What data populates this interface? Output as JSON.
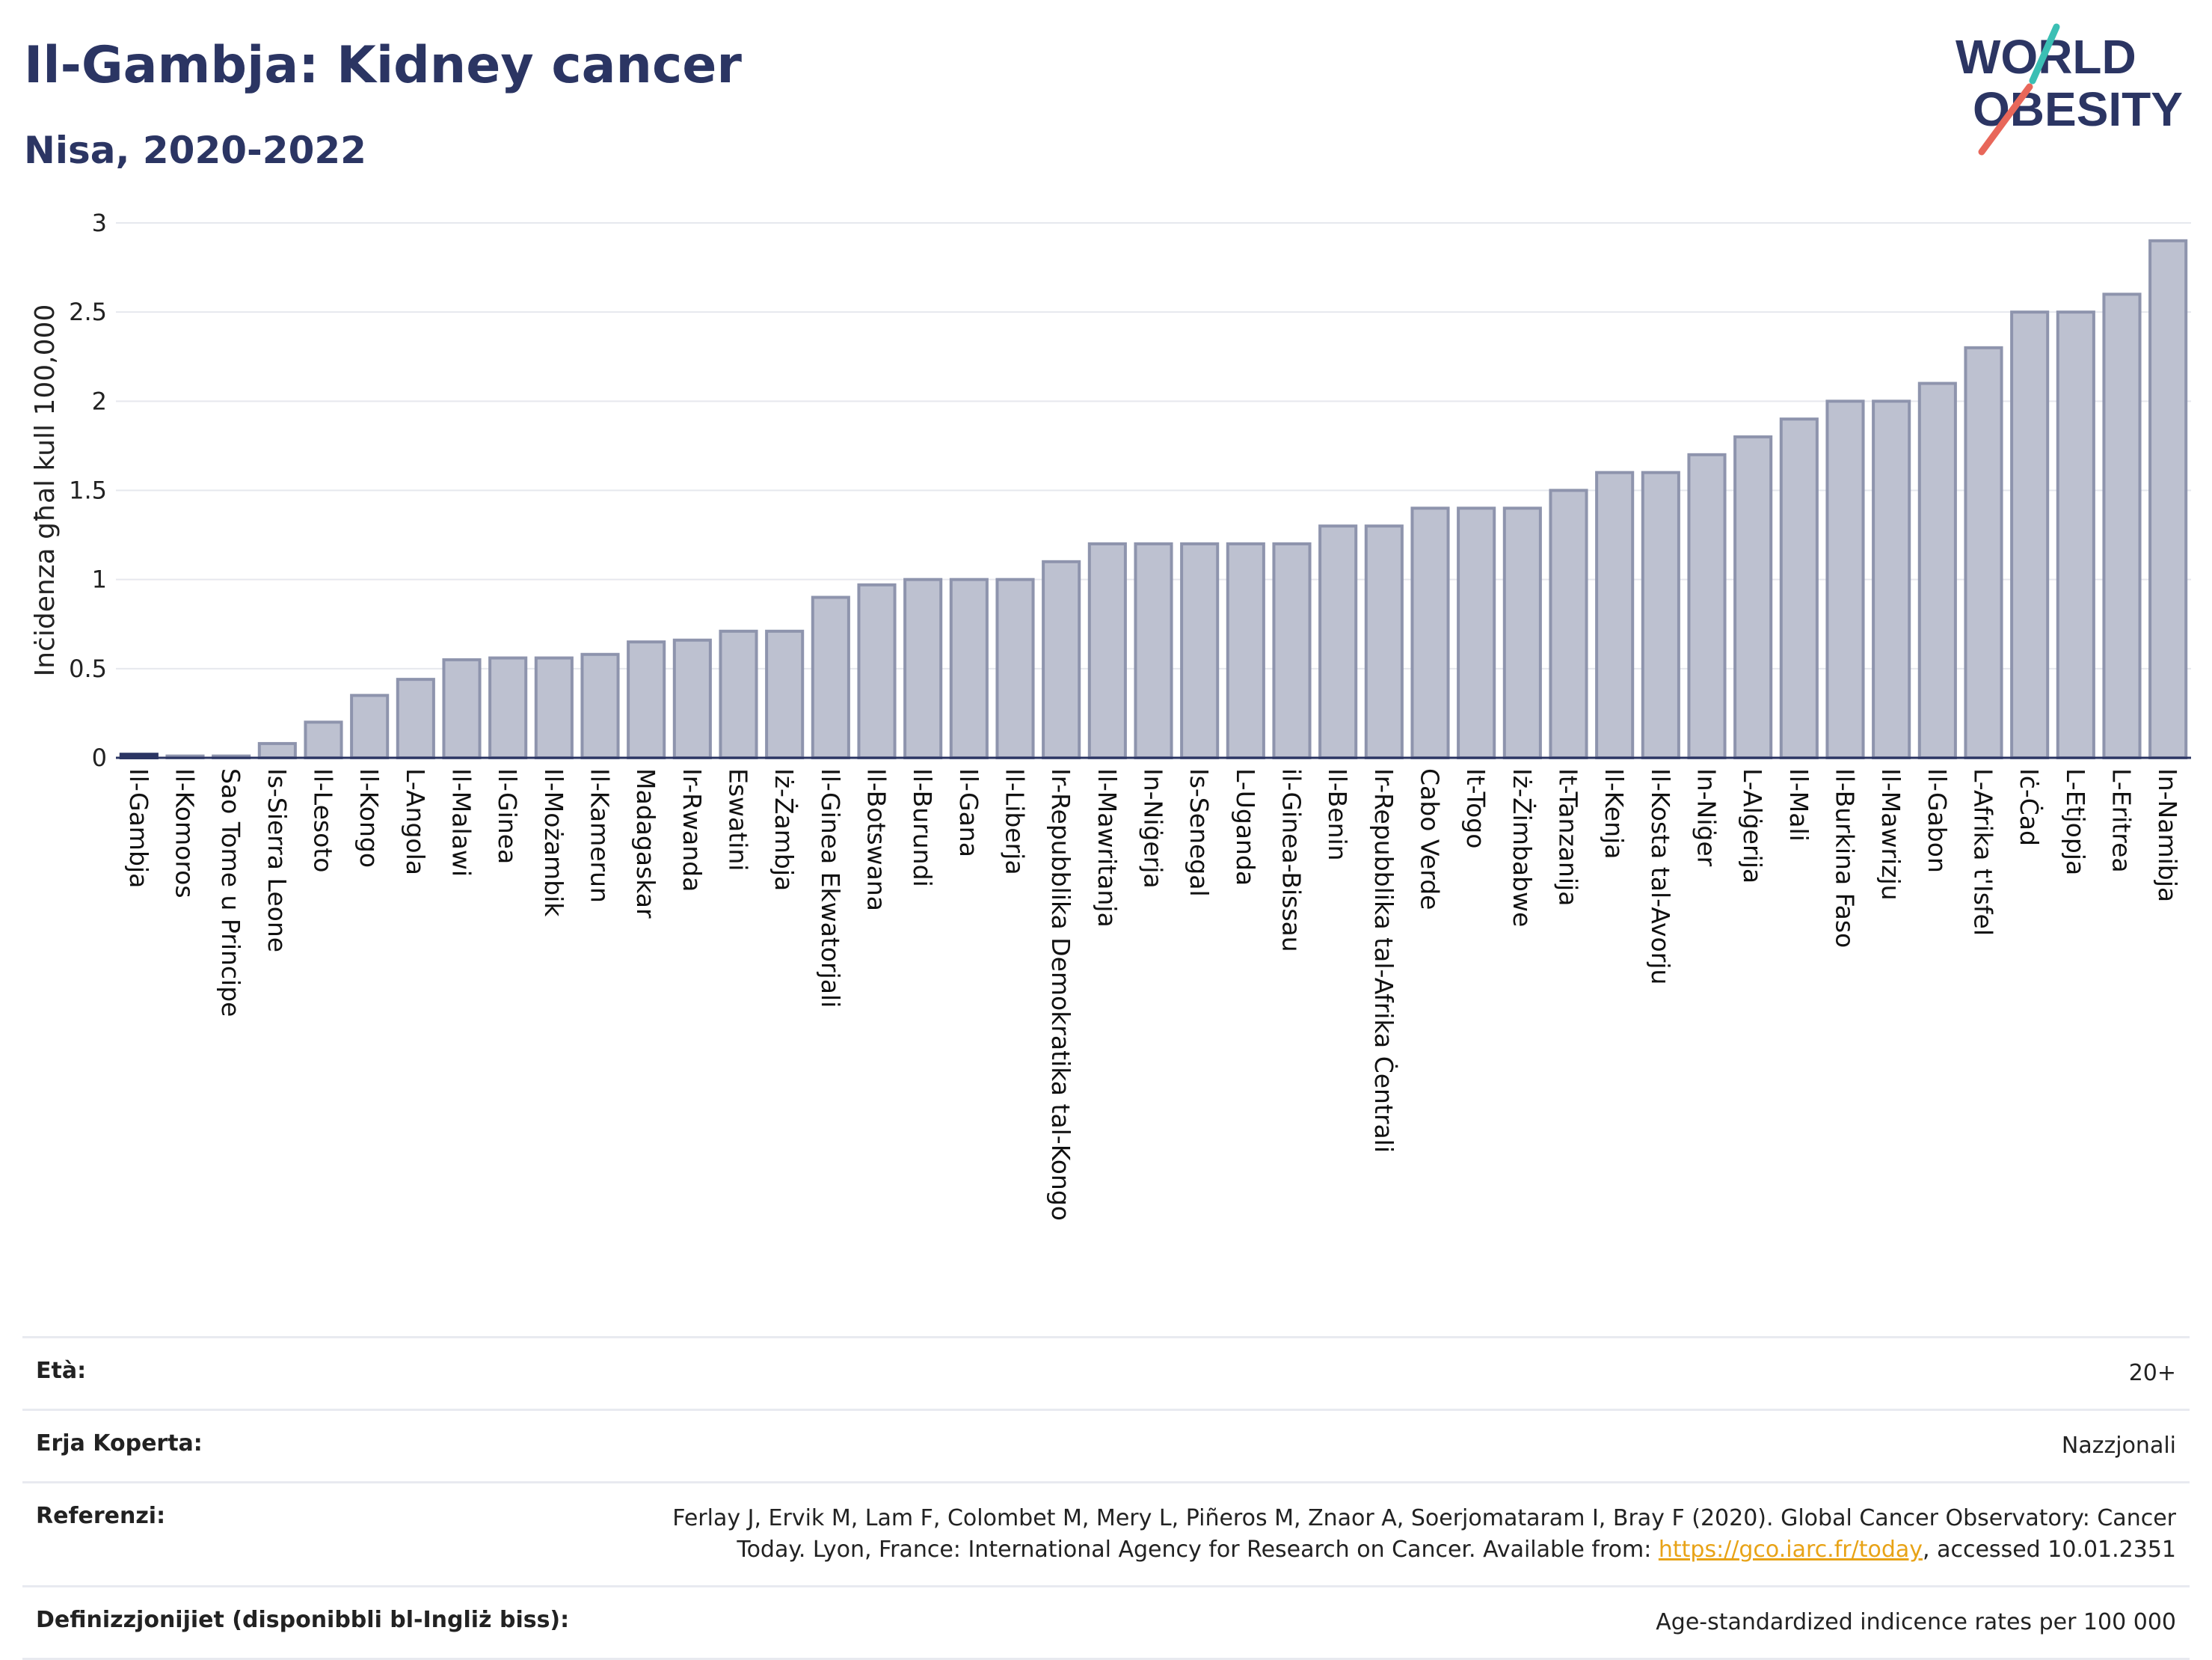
{
  "header": {
    "title": "Il-Gambja: Kidney cancer",
    "subtitle": "Nisa, 2020-2022"
  },
  "logo": {
    "line1": "WORLD",
    "line2": "OBESITY"
  },
  "colors": {
    "bar_fill": "#bdc1d0",
    "bar_stroke": "#8e94ad",
    "highlight": "#2b3563",
    "text": "#2b3563",
    "logo_teal": "#3bbfb4",
    "logo_coral": "#e8675a",
    "link": "#e8a317"
  },
  "chart_data": {
    "type": "bar",
    "ylabel": "Inċidenza għal kull 100,000",
    "ylim": [
      0,
      3
    ],
    "yticks": [
      "0",
      "0.5",
      "1",
      "1.5",
      "2",
      "2.5",
      "3"
    ],
    "ytick_values": [
      0,
      0.5,
      1,
      1.5,
      2,
      2.5,
      3
    ],
    "grid": true,
    "highlight_category": "Il-Gambja",
    "categories": [
      "Il-Gambja",
      "Il-Komoros",
      "Sao Tome u Principe",
      "Is-Sierra Leone",
      "Il-Lesoto",
      "Il-Kongo",
      "L-Angola",
      "Il-Malawi",
      "Il-Ginea",
      "Il-Możambik",
      "Il-Kamerun",
      "Madagaskar",
      "Ir-Rwanda",
      "Eswatini",
      "Iż-Żambja",
      "Il-Ginea Ekwatorjali",
      "Il-Botswana",
      "Il-Burundi",
      "Il-Gana",
      "Il-Liberja",
      "Ir-Repubblika Demokratika tal-Kongo",
      "Il-Mawritanja",
      "In-Niġerja",
      "Is-Senegal",
      "L-Uganda",
      "il-Ginea-Bissau",
      "Il-Benin",
      "Ir-Repubblika tal-Afrika Ċentrali",
      "Cabo Verde",
      "It-Togo",
      "Iż-Żimbabwe",
      "It-Tanzanija",
      "Il-Kenja",
      "Il-Kosta tal-Avorju",
      "In-Niġer",
      "L-Alġerija",
      "Il-Mali",
      "Il-Burkina Faso",
      "Il-Mawrizju",
      "Il-Gabon",
      "L-Afrika t'Isfel",
      "Iċ-Ċad",
      "L-Etjopja",
      "L-Eritrea",
      "In-Namibja"
    ],
    "values": [
      0.02,
      0.01,
      0.01,
      0.08,
      0.2,
      0.35,
      0.44,
      0.55,
      0.56,
      0.56,
      0.58,
      0.65,
      0.66,
      0.71,
      0.71,
      0.9,
      0.97,
      1.0,
      1.0,
      1.0,
      1.1,
      1.2,
      1.2,
      1.2,
      1.2,
      1.2,
      1.3,
      1.3,
      1.4,
      1.4,
      1.4,
      1.5,
      1.6,
      1.6,
      1.7,
      1.8,
      1.9,
      2.0,
      2.0,
      2.1,
      2.3,
      2.5,
      2.5,
      2.6,
      2.9
    ]
  },
  "info": {
    "age_label": "Età:",
    "age_value": "20+",
    "area_label": "Erja Koperta:",
    "area_value": "Nazzjonali",
    "ref_label": "Referenzi:",
    "ref_text_1": "Ferlay J, Ervik M, Lam F, Colombet M, Mery L, Piñeros M, Znaor A, Soerjomataram I, Bray F (2020). Global Cancer Observatory: Cancer",
    "ref_text_2": "Today. Lyon, France: International Agency for Research on Cancer. Available from:",
    "ref_link": "https://gco.iarc.fr/today",
    "ref_text_3": ", accessed 10.01.2351",
    "def_label": "Definizzjonijiet (disponibbli bl-Ingliż biss):",
    "def_value": "Age-standardized indicence rates per 100 000"
  }
}
